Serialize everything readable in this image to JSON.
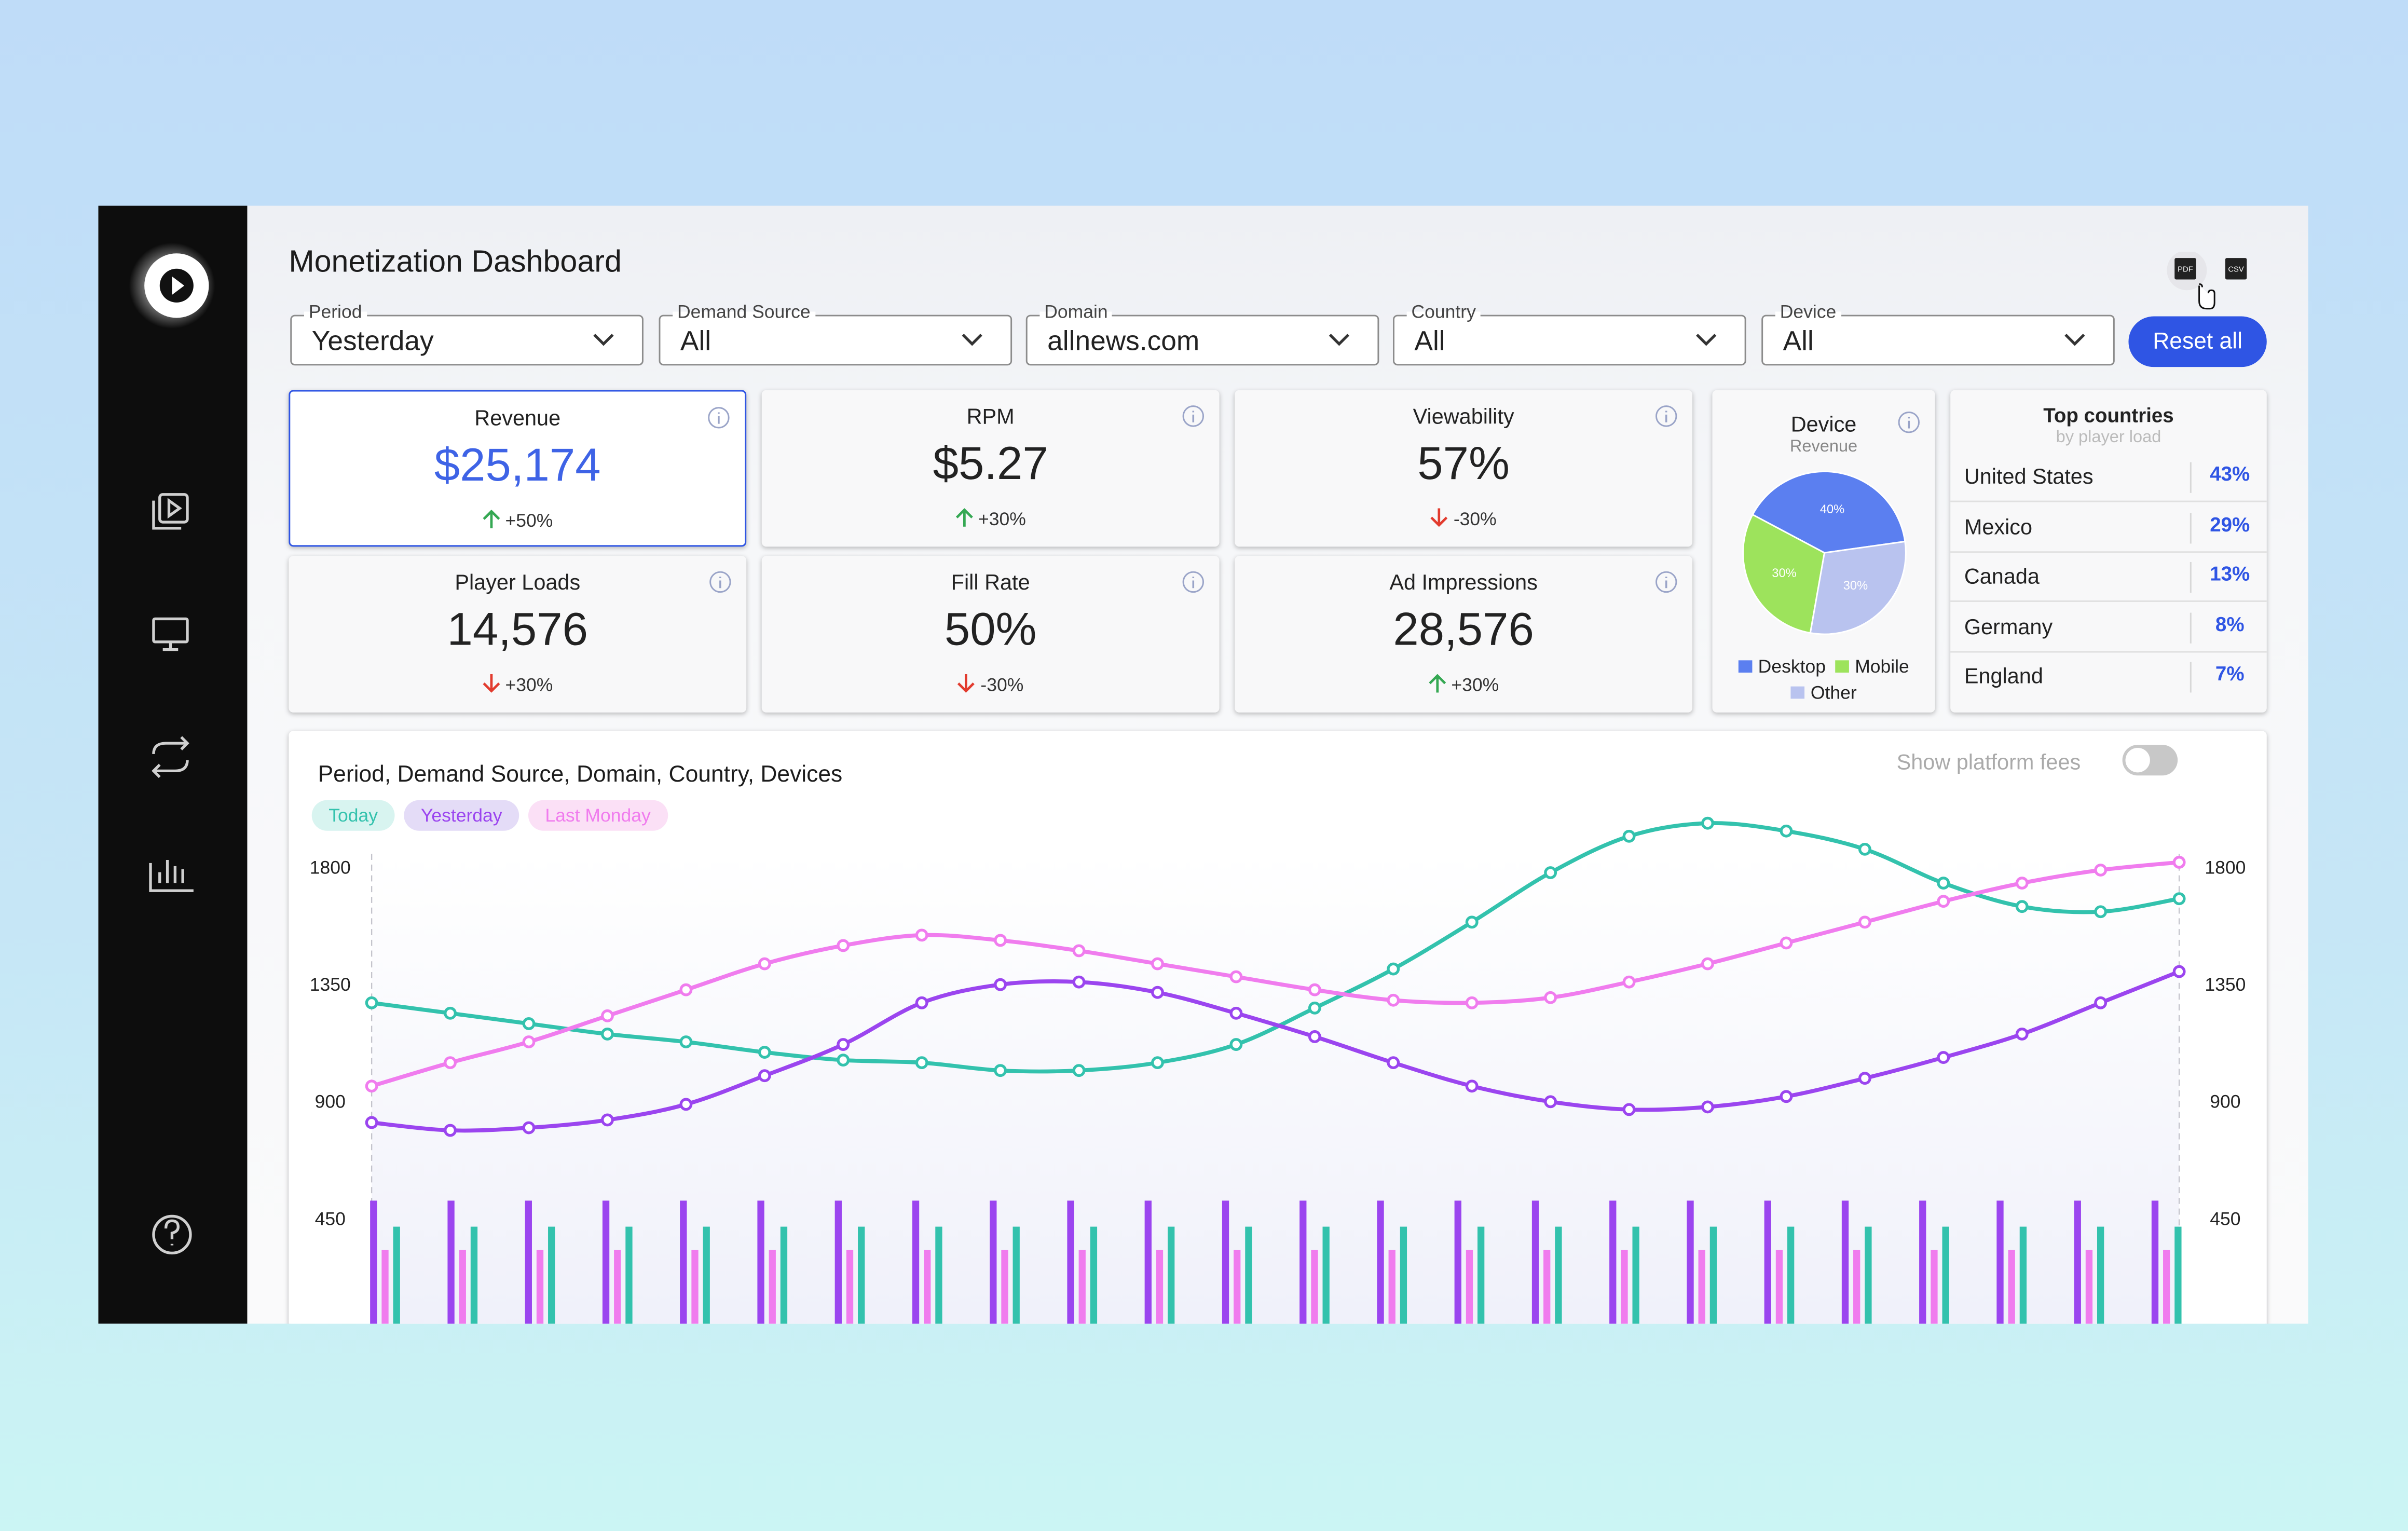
{
  "header": {
    "title": "Monetization Dashboard",
    "export": [
      "PDF",
      "CSV"
    ]
  },
  "filters": [
    {
      "label": "Period",
      "value": "Yesterday"
    },
    {
      "label": "Demand Source",
      "value": "All"
    },
    {
      "label": "Domain",
      "value": "allnews.com"
    },
    {
      "label": "Country",
      "value": "All"
    },
    {
      "label": "Device",
      "value": "All"
    }
  ],
  "reset": "Reset all",
  "kpis": [
    {
      "title": "Revenue",
      "value": "$25,174",
      "change": "+50%",
      "trend": "up"
    },
    {
      "title": "RPM",
      "value": "$5.27",
      "change": "+30%",
      "trend": "up"
    },
    {
      "title": "Viewability",
      "value": "57%",
      "change": "-30%",
      "trend": "down"
    },
    {
      "title": "Player Loads",
      "value": "14,576",
      "change": "+30%",
      "trend": "down"
    },
    {
      "title": "Fill Rate",
      "value": "50%",
      "change": "-30%",
      "trend": "down"
    },
    {
      "title": "Ad Impressions",
      "value": "28,576",
      "change": "+30%",
      "trend": "up"
    }
  ],
  "device_chart": {
    "type": "pie",
    "title": "Device",
    "subtitle": "Revenue",
    "categories": [
      "Desktop",
      "Mobile",
      "Other"
    ],
    "values": [
      40,
      30,
      30
    ],
    "value_labels": [
      "40%",
      "30%",
      "30%"
    ],
    "colors": [
      "#5b7ff0",
      "#9de35c",
      "#b9c3ef"
    ]
  },
  "top_countries": {
    "title": "Top countries",
    "subtitle": "by player load",
    "rows": [
      [
        "United States",
        "43%"
      ],
      [
        "Mexico",
        "29%"
      ],
      [
        "Canada",
        "13%"
      ],
      [
        "Germany",
        "8%"
      ],
      [
        "England",
        "7%"
      ]
    ]
  },
  "chart_data": {
    "type": "line",
    "title": "Period, Demand Source, Domain, Country, Devices",
    "toggle": "Show platform fees",
    "categories": [
      null,
      null,
      null,
      null,
      null,
      null,
      null,
      null,
      null,
      null,
      null,
      null,
      null,
      null,
      null,
      null,
      null,
      null,
      null,
      null,
      null,
      null,
      null,
      null
    ],
    "ylim": [
      0,
      2000
    ],
    "yticks": [
      450,
      900,
      1350,
      1800
    ],
    "grid": false,
    "series": [
      {
        "name": "Today",
        "color": "#33c2ad",
        "chip": "#d8f4f0",
        "values": [
          1280,
          1240,
          1200,
          1160,
          1130,
          1090,
          1060,
          1050,
          1020,
          1020,
          1050,
          1120,
          1260,
          1410,
          1590,
          1780,
          1920,
          1970,
          1940,
          1870,
          1740,
          1650,
          1630,
          1680
        ],
        "bar_values": [
          420,
          420,
          420,
          420,
          420,
          420,
          420,
          420,
          420,
          420,
          420,
          420,
          420,
          420,
          420,
          420,
          420,
          420,
          420,
          420,
          420,
          420,
          420,
          420
        ]
      },
      {
        "name": "Yesterday",
        "color": "#9b45ef",
        "chip": "#e4dcf7",
        "values": [
          820,
          790,
          800,
          830,
          890,
          1000,
          1120,
          1280,
          1350,
          1360,
          1320,
          1240,
          1150,
          1050,
          960,
          900,
          870,
          880,
          920,
          990,
          1070,
          1160,
          1280,
          1400
        ],
        "bar_values": [
          520,
          520,
          520,
          520,
          520,
          520,
          520,
          520,
          520,
          520,
          520,
          520,
          520,
          520,
          520,
          520,
          520,
          520,
          520,
          520,
          520,
          520,
          520,
          520
        ]
      },
      {
        "name": "Last Monday",
        "color": "#f07cee",
        "chip": "#fbe0f6",
        "values": [
          960,
          1050,
          1130,
          1230,
          1330,
          1430,
          1500,
          1540,
          1520,
          1480,
          1430,
          1380,
          1330,
          1290,
          1280,
          1300,
          1360,
          1430,
          1510,
          1590,
          1670,
          1740,
          1790,
          1820
        ],
        "bar_values": [
          330,
          330,
          330,
          330,
          330,
          330,
          330,
          330,
          330,
          330,
          330,
          330,
          330,
          330,
          330,
          330,
          330,
          330,
          330,
          330,
          330,
          330,
          330,
          330
        ]
      }
    ]
  }
}
